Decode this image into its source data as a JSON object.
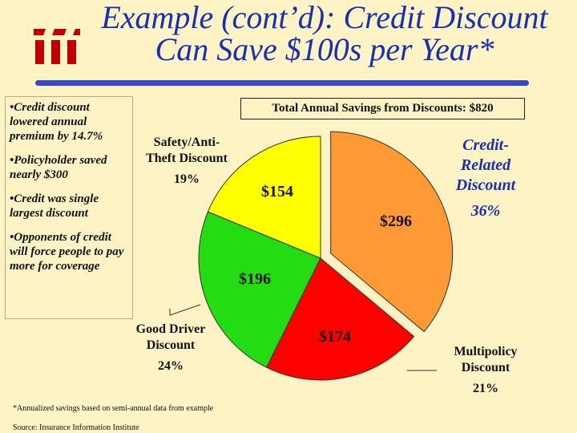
{
  "header": {
    "title_line1": "Example (cont’d): Credit Discount",
    "title_line2": "Can Save $100s per Year*"
  },
  "bullets": [
    "•Credit discount lowered annual premium by 14.7%",
    "•Policyholder saved nearly $300",
    "•Credit was single largest discount",
    "•Opponents of credit will force people to pay more for coverage"
  ],
  "total_label": "Total Annual Savings from Discounts: $820",
  "footnote": "*Annualized savings based on semi-annual data from example",
  "source": "Source: Insurance Information Institute",
  "colors": {
    "title": "#1a2fb0",
    "background": "#fdf3c4",
    "credit": "#ff9933",
    "multipolicy": "#ff0000",
    "good_driver": "#22dd11",
    "safety": "#ffff00",
    "credit_label": "#1a2fb0"
  },
  "chart_data": {
    "type": "pie",
    "title": "Total Annual Savings from Discounts: $820",
    "slices": [
      {
        "name": "Credit-Related Discount",
        "name_lines": [
          "Credit-",
          "Related",
          "Discount"
        ],
        "pct_label": "36%",
        "value": 296,
        "value_label": "$296",
        "color": "#ff9933",
        "exploded": true
      },
      {
        "name": "Multipolicy Discount",
        "name_lines": [
          "Multipolicy",
          "Discount"
        ],
        "pct_label": "21%",
        "value": 174,
        "value_label": "$174",
        "color": "#ff0000",
        "exploded": false
      },
      {
        "name": "Good Driver Discount",
        "name_lines": [
          "Good Driver",
          "Discount"
        ],
        "pct_label": "24%",
        "value": 196,
        "value_label": "$196",
        "color": "#22dd11",
        "exploded": false
      },
      {
        "name": "Safety/Anti-Theft Discount",
        "name_lines": [
          "Safety/Anti-",
          "Theft Discount"
        ],
        "pct_label": "19%",
        "value": 154,
        "value_label": "$154",
        "color": "#ffff00",
        "exploded": false
      }
    ]
  }
}
